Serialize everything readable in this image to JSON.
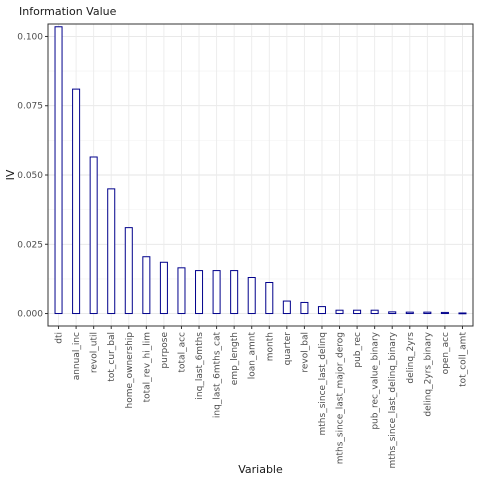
{
  "chart_data": {
    "type": "bar",
    "title": "Information Value",
    "xlabel": "Variable",
    "ylabel": "IV",
    "ylim": [
      -0.0045,
      0.1045
    ],
    "yticks": [
      0.0,
      0.025,
      0.05,
      0.075,
      0.1
    ],
    "ytick_labels": [
      "0.000",
      "0.025",
      "0.050",
      "0.075",
      "0.100"
    ],
    "grid": true,
    "legend": "none",
    "bar_fill": "#ffffff",
    "bar_outline": "#00008b",
    "categories": [
      "dti",
      "annual_inc",
      "revol_util",
      "tot_cur_bal",
      "home_ownership",
      "total_rev_hi_lim",
      "purpose",
      "total_acc",
      "inq_last_6mths",
      "inq_last_6mths_cat",
      "emp_length",
      "loan_amnt",
      "month",
      "quarter",
      "revol_bal",
      "mths_since_last_delinq",
      "mths_since_last_major_derog",
      "pub_rec",
      "pub_rec_value_binary",
      "mths_since_last_delinq_binary",
      "delinq_2yrs",
      "delinq_2yrs_binary",
      "open_acc",
      "tot_coll_amt"
    ],
    "values": [
      0.1035,
      0.081,
      0.0565,
      0.045,
      0.031,
      0.0205,
      0.0185,
      0.0165,
      0.0155,
      0.0155,
      0.0155,
      0.013,
      0.0112,
      0.0045,
      0.004,
      0.0025,
      0.0012,
      0.0012,
      0.0012,
      0.0006,
      0.0005,
      0.0005,
      0.0004,
      0.0002
    ]
  }
}
